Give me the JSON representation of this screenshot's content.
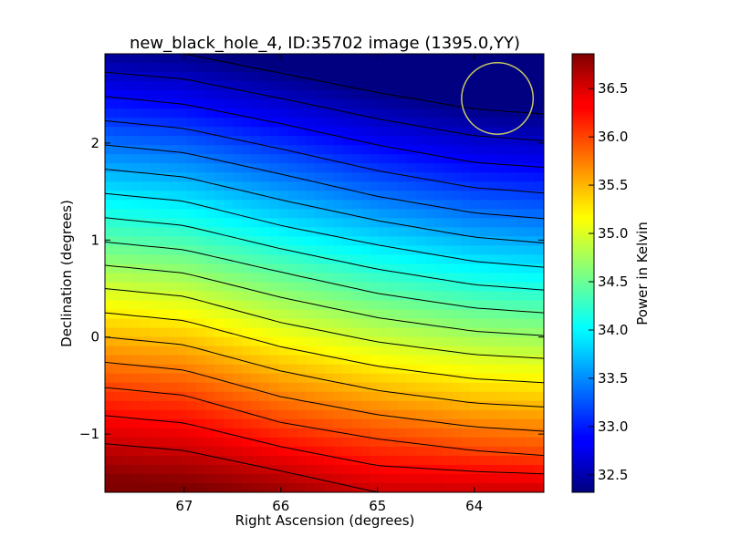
{
  "chart_data": {
    "type": "heatmap",
    "title": "new_black_hole_4, ID:35702 image (1395.0,YY)",
    "xlabel": "Right Ascension (degrees)",
    "ylabel": "Declination (degrees)",
    "xlim": [
      67.82,
      63.28
    ],
    "ylim": [
      -1.6,
      2.92
    ],
    "x_ticks": [
      67,
      66,
      65,
      64
    ],
    "x_tick_labels": [
      "67",
      "66",
      "65",
      "64"
    ],
    "y_ticks": [
      -1,
      0,
      1,
      2
    ],
    "y_tick_labels": [
      "−1",
      "0",
      "1",
      "2"
    ],
    "colormap": "jet",
    "colorbar": {
      "label": "Power in Kelvin",
      "range": [
        32.32,
        36.86
      ],
      "ticks": [
        32.5,
        33.0,
        33.5,
        34.0,
        34.5,
        35.0,
        35.5,
        36.0,
        36.5
      ],
      "tick_labels": [
        "32.5",
        "33.0",
        "33.5",
        "34.0",
        "34.5",
        "35.0",
        "35.5",
        "36.0",
        "36.5"
      ]
    },
    "contour_levels": [
      32.36,
      32.62,
      32.88,
      33.14,
      33.4,
      33.66,
      33.92,
      34.18,
      34.44,
      34.7,
      34.96,
      35.22,
      35.48,
      35.74,
      36.0,
      36.26,
      36.52
    ],
    "field": {
      "x": [
        67.82,
        67.0,
        66.0,
        65.0,
        64.0,
        63.28
      ],
      "dec_at_value": [
        {
          "value": 36.52,
          "dec": [
            -1.1,
            -1.17,
            -1.38,
            -1.6,
            -1.6,
            -1.6
          ]
        },
        {
          "value": 36.0,
          "dec": [
            -0.52,
            -0.6,
            -0.88,
            -1.05,
            -1.17,
            -1.22
          ]
        },
        {
          "value": 35.48,
          "dec": [
            0.0,
            -0.08,
            -0.35,
            -0.55,
            -0.68,
            -0.72
          ]
        },
        {
          "value": 34.96,
          "dec": [
            0.5,
            0.42,
            0.15,
            -0.05,
            -0.18,
            -0.22
          ]
        },
        {
          "value": 34.44,
          "dec": [
            0.98,
            0.9,
            0.67,
            0.45,
            0.3,
            0.25
          ]
        },
        {
          "value": 33.92,
          "dec": [
            1.48,
            1.4,
            1.15,
            0.95,
            0.78,
            0.72
          ]
        },
        {
          "value": 33.4,
          "dec": [
            1.98,
            1.9,
            1.68,
            1.45,
            1.28,
            1.22
          ]
        },
        {
          "value": 32.88,
          "dec": [
            2.48,
            2.4,
            2.2,
            1.98,
            1.8,
            1.75
          ]
        },
        {
          "value": 32.36,
          "dec": [
            2.98,
            2.92,
            2.72,
            2.52,
            2.35,
            2.3
          ]
        }
      ]
    },
    "annotation": {
      "type": "circle",
      "center_ra": 63.76,
      "center_dec": 2.46,
      "radius_deg": 0.37,
      "color": "#c8c864"
    }
  },
  "colors": {
    "contour": "#000000",
    "circle": "#c8c864"
  }
}
